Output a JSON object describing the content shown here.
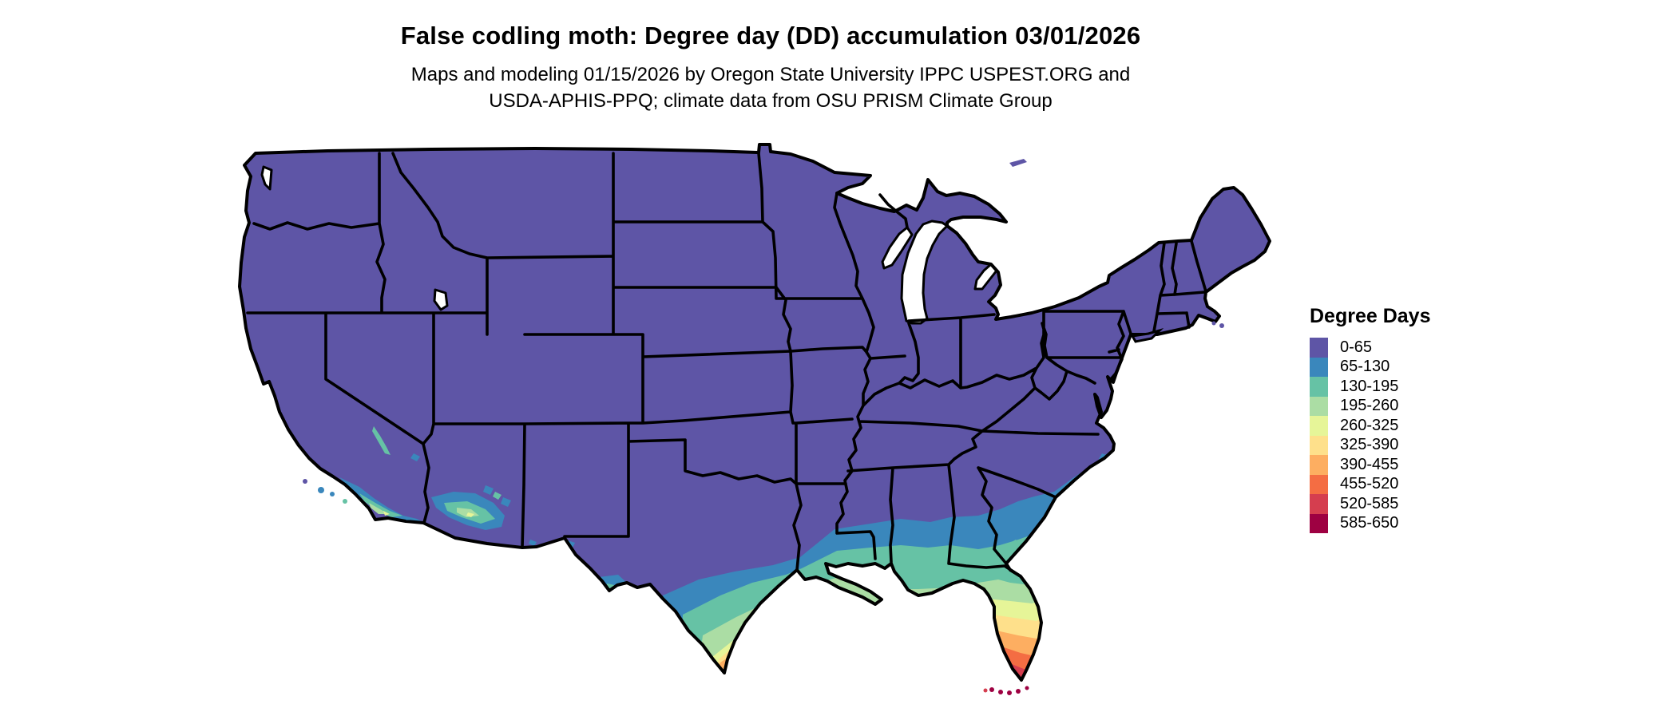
{
  "title": "False codling moth: Degree day (DD) accumulation 03/01/2026",
  "subtitle": {
    "line1": "Maps and modeling 01/15/2026 by Oregon State University IPPC USPEST.ORG and",
    "line2": "USDA-APHIS-PPQ; climate data from OSU PRISM Climate Group"
  },
  "legend": {
    "title": "Degree Days",
    "classes": [
      {
        "label": "0-65",
        "color": "#5e55a6"
      },
      {
        "label": "65-130",
        "color": "#3a87bc"
      },
      {
        "label": "130-195",
        "color": "#66c2a5"
      },
      {
        "label": "195-260",
        "color": "#abdda4"
      },
      {
        "label": "260-325",
        "color": "#e6f598"
      },
      {
        "label": "325-390",
        "color": "#fee08b"
      },
      {
        "label": "390-455",
        "color": "#fdae61"
      },
      {
        "label": "455-520",
        "color": "#f46d43"
      },
      {
        "label": "520-585",
        "color": "#d53e4f"
      },
      {
        "label": "585-650",
        "color": "#9e0142"
      }
    ]
  },
  "map": {
    "region": "Contiguous United States",
    "description": "Choropleth of false codling moth degree-day accumulation; most of the U.S. in the 0-65 class, warmer classes along southern Texas, the Gulf Coast, Florida (up to 585-650 at the Keys), and patches in southern California and Arizona",
    "border_color": "#000000",
    "water_color": "#ffffff",
    "background": "#ffffff"
  }
}
